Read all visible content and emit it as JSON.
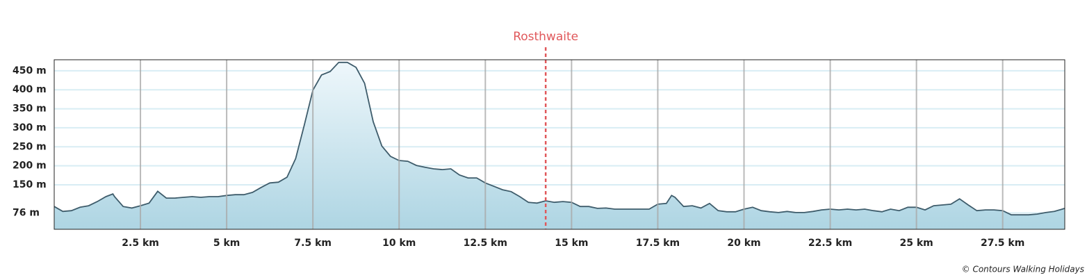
{
  "chart_data": {
    "type": "area",
    "x": [
      0,
      0.25,
      0.5,
      0.75,
      1.0,
      1.25,
      1.5,
      1.7,
      1.75,
      2.0,
      2.25,
      2.5,
      2.75,
      3.0,
      3.25,
      3.5,
      3.75,
      4.0,
      4.25,
      4.5,
      4.75,
      5.0,
      5.25,
      5.5,
      5.75,
      6.0,
      6.25,
      6.5,
      6.75,
      7.0,
      7.25,
      7.5,
      7.75,
      8.0,
      8.25,
      8.5,
      8.75,
      9.0,
      9.25,
      9.5,
      9.75,
      10.0,
      10.25,
      10.5,
      10.75,
      11.0,
      11.25,
      11.5,
      11.75,
      12.0,
      12.25,
      12.5,
      12.75,
      13.0,
      13.25,
      13.5,
      13.75,
      14.0,
      14.25,
      14.5,
      14.75,
      15.0,
      15.25,
      15.5,
      15.75,
      16.0,
      16.25,
      16.5,
      16.75,
      17.0,
      17.25,
      17.5,
      17.75,
      17.9,
      18.0,
      18.25,
      18.5,
      18.75,
      19.0,
      19.25,
      19.5,
      19.75,
      20.0,
      20.25,
      20.5,
      20.75,
      21.0,
      21.25,
      21.5,
      21.75,
      22.0,
      22.25,
      22.5,
      22.75,
      23.0,
      23.25,
      23.5,
      23.75,
      24.0,
      24.25,
      24.5,
      24.75,
      25.0,
      25.25,
      25.5,
      25.75,
      26.0,
      26.25,
      26.5,
      26.75,
      27.0,
      27.25,
      27.5,
      27.75,
      28.0,
      28.25,
      28.5,
      28.75,
      29.0,
      29.3
    ],
    "series": [
      {
        "color": "#3e5c6b",
        "values": [
          93,
          80,
          82,
          91,
          95,
          106,
          119,
          126,
          119,
          93,
          89,
          95,
          102,
          133,
          115,
          115,
          117,
          119,
          117,
          119,
          119,
          122,
          124,
          124,
          130,
          143,
          155,
          157,
          170,
          219,
          307,
          399,
          439,
          448,
          472,
          472,
          459,
          417,
          316,
          252,
          225,
          214,
          212,
          201,
          196,
          192,
          190,
          192,
          176,
          168,
          168,
          155,
          146,
          137,
          132,
          119,
          104,
          102,
          108,
          104,
          106,
          104,
          93,
          93,
          88,
          89,
          86,
          86,
          86,
          86,
          86,
          99,
          101,
          122,
          117,
          93,
          95,
          89,
          101,
          82,
          79,
          79,
          86,
          91,
          82,
          79,
          77,
          80,
          77,
          77,
          80,
          84,
          86,
          84,
          86,
          84,
          86,
          82,
          79,
          86,
          82,
          91,
          91,
          84,
          95,
          97,
          99,
          113,
          97,
          82,
          84,
          84,
          82,
          71,
          71,
          71,
          73,
          77,
          80,
          88
        ]
      }
    ],
    "xlim": [
      0,
      29.3
    ],
    "ylim": [
      33,
      479
    ],
    "xticks": [
      {
        "value": 2.5,
        "label": "2.5 km"
      },
      {
        "value": 5,
        "label": "5 km"
      },
      {
        "value": 7.5,
        "label": "7.5 km"
      },
      {
        "value": 10,
        "label": "10 km"
      },
      {
        "value": 12.5,
        "label": "12.5 km"
      },
      {
        "value": 15,
        "label": "15 km"
      },
      {
        "value": 17.5,
        "label": "17.5 km"
      },
      {
        "value": 20,
        "label": "20 km"
      },
      {
        "value": 22.5,
        "label": "22.5 km"
      },
      {
        "value": 25,
        "label": "25 km"
      },
      {
        "value": 27.5,
        "label": "27.5 km"
      }
    ],
    "yticks": [
      {
        "value": 76,
        "label": "76 m"
      },
      {
        "value": 150,
        "label": "150 m"
      },
      {
        "value": 200,
        "label": "200 m"
      },
      {
        "value": 250,
        "label": "250 m"
      },
      {
        "value": 300,
        "label": "300 m"
      },
      {
        "value": 350,
        "label": "350 m"
      },
      {
        "value": 400,
        "label": "400 m"
      },
      {
        "value": 450,
        "label": "450 m"
      }
    ],
    "grid": true,
    "annotations": [
      {
        "x": 14.25,
        "label": "Rosthwaite",
        "color": "#e0585b"
      }
    ],
    "credit": "© Contours Walking Holidays"
  }
}
